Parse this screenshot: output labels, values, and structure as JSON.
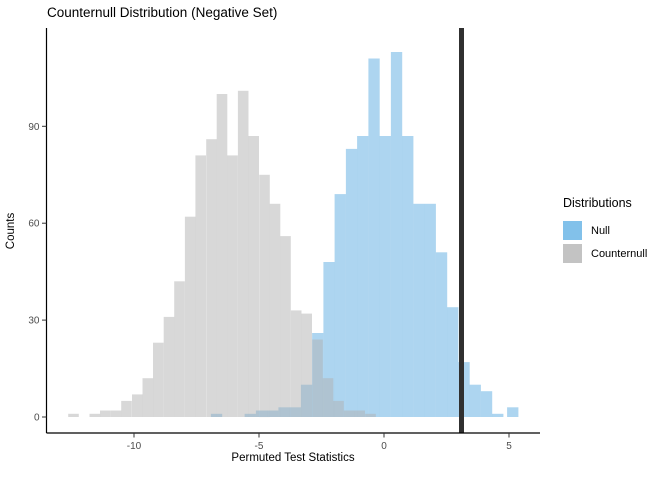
{
  "chart_data": {
    "type": "histogram",
    "title": "Counternull Distribution (Negative Set)",
    "xlabel": "Permuted Test Statistics",
    "ylabel": "Counts",
    "x_tick_values": [
      -10,
      -5,
      0,
      5
    ],
    "y_tick_values": [
      0,
      30,
      60,
      90
    ],
    "x_range": [
      -13.5,
      6.25
    ],
    "y_range": [
      0,
      120
    ],
    "grid": "off",
    "legend_position": "right",
    "vline": {
      "x": 3.1,
      "color": "#303030",
      "width": 5
    },
    "style": {
      "axis_text_color": "#4D4D4D",
      "axis_line_color": "#000000",
      "background": "#FFFFFF"
    },
    "series": [
      {
        "name": "Null",
        "fill": "#5BABE1",
        "opacity": 0.5,
        "bin_width": 0.45,
        "centers": [
          -6.7,
          -6.25,
          -5.8,
          -5.35,
          -4.9,
          -4.45,
          -4.0,
          -3.55,
          -3.1,
          -2.65,
          -2.2,
          -1.75,
          -1.3,
          -0.85,
          -0.4,
          0.05,
          0.5,
          0.95,
          1.4,
          1.85,
          2.3,
          2.75,
          3.2,
          3.65,
          4.1,
          4.55,
          5.15
        ],
        "counts": [
          1,
          0,
          0,
          1,
          2,
          2,
          3,
          3,
          10,
          26,
          48,
          69,
          83,
          87,
          111,
          87,
          113,
          87,
          66,
          66,
          51,
          34,
          17,
          10,
          8,
          1,
          3
        ]
      },
      {
        "name": "Counternull",
        "fill": "#B1B1B1",
        "opacity": 0.5,
        "bin_width": 0.424,
        "centers": [
          -12.42,
          -12.0,
          -11.57,
          -11.15,
          -10.72,
          -10.3,
          -9.87,
          -9.45,
          -9.03,
          -8.6,
          -8.18,
          -7.75,
          -7.33,
          -6.9,
          -6.48,
          -6.06,
          -5.63,
          -5.21,
          -4.78,
          -4.36,
          -3.94,
          -3.51,
          -3.09,
          -2.66,
          -2.24,
          -1.82,
          -1.39,
          -0.97,
          -0.54
        ],
        "counts": [
          1,
          0,
          1,
          2,
          2,
          5,
          7,
          12,
          23,
          31,
          42,
          62,
          81,
          86,
          100,
          81,
          101,
          87,
          75,
          66,
          56,
          33,
          32,
          24,
          12,
          5,
          2,
          2,
          1
        ]
      }
    ],
    "legend": {
      "title": "Distributions",
      "items": [
        {
          "label": "Null",
          "swatch": "#82C1EA"
        },
        {
          "label": "Counternull",
          "swatch": "#C3C3C3"
        }
      ]
    }
  }
}
